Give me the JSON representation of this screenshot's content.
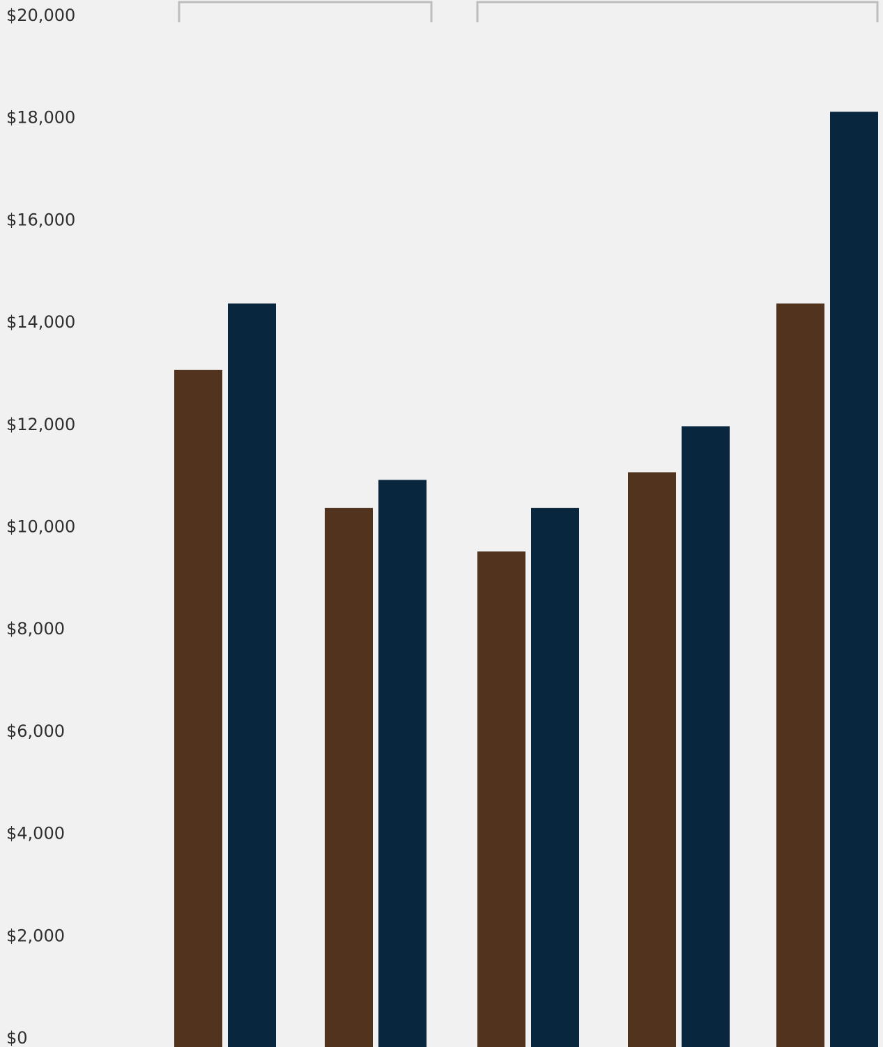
{
  "chart_data": {
    "type": "bar",
    "title": "",
    "xlabel": "",
    "ylabel": "",
    "ylim": [
      0,
      20000
    ],
    "y_ticks": [
      "$0",
      "$2,000",
      "$4,000",
      "$6,000",
      "$8,000",
      "$10,000",
      "$12,000",
      "$14,000",
      "$16,000",
      "$18,000",
      "$20,000"
    ],
    "y_tick_values": [
      0,
      2000,
      4000,
      6000,
      8000,
      10000,
      12000,
      14000,
      16000,
      18000,
      20000
    ],
    "categories": [
      "",
      "",
      "",
      "",
      ""
    ],
    "series": [
      {
        "values": [
          13050,
          10350,
          9500,
          11050,
          14350
        ]
      },
      {
        "values": [
          14350,
          10900,
          10350,
          11950,
          18100
        ]
      }
    ],
    "groups": [
      {
        "categories": [
          0,
          1
        ]
      },
      {
        "categories": [
          2,
          3,
          4
        ]
      }
    ],
    "grid": false,
    "legend": "none"
  },
  "colors": {
    "background": "#f1f1f1",
    "series": [
      "#52331d",
      "#08263e"
    ],
    "bracket": "#bdbdbd",
    "text": "#2f2f2f"
  }
}
